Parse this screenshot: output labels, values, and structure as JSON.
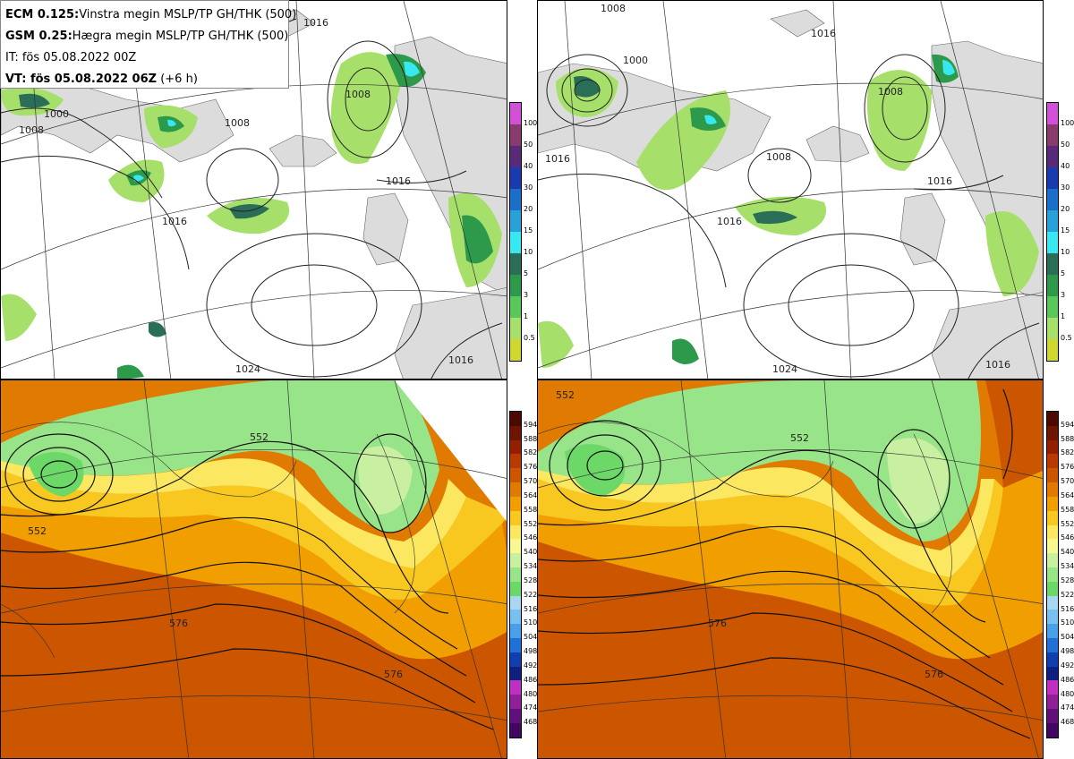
{
  "header": {
    "line1_bold": "ECM 0.125:",
    "line1_text": "Vinstra megin MSLP/TP GH/THK (500)",
    "line2_bold": "GSM 0.25:",
    "line2_text": "Hægra megin MSLP/TP GH/THK (500)",
    "line3_text": "IT: fös 05.08.2022 00Z",
    "line4_bold": "VT: fös 05.08.2022 06Z",
    "line4_text": " (+6 h)"
  },
  "precip_colorbar": {
    "labels": [
      "100",
      "50",
      "40",
      "30",
      "20",
      "15",
      "10",
      "5",
      "3",
      "1",
      "0.5"
    ],
    "colors": [
      "#d24fd8",
      "#8a3b6e",
      "#5a2a7a",
      "#1a3ab0",
      "#1a70c8",
      "#28a0d8",
      "#38e8f0",
      "#2a6e58",
      "#2c9a4a",
      "#58c85a",
      "#a6e06a",
      "#d0d830"
    ]
  },
  "thickness_colorbar": {
    "labels": [
      "594",
      "588",
      "582",
      "576",
      "570",
      "564",
      "558",
      "552",
      "546",
      "540",
      "534",
      "528",
      "522",
      "516",
      "510",
      "504",
      "498",
      "492",
      "486",
      "480",
      "474",
      "468"
    ],
    "colors": [
      "#4a0a00",
      "#6e1500",
      "#941e00",
      "#b83a00",
      "#cc5500",
      "#e07a00",
      "#f09e00",
      "#f8c820",
      "#fce860",
      "#f8f890",
      "#c8f0a0",
      "#98e488",
      "#6cd868",
      "#a8d8f0",
      "#78c0f0",
      "#48a0e8",
      "#2070d8",
      "#1040b0",
      "#102080",
      "#c030c0",
      "#902098",
      "#601078",
      "#400860"
    ]
  },
  "panels": {
    "top_left": {
      "mslp_labels": [
        "1000",
        "1008",
        "1008",
        "1008",
        "1016",
        "1016",
        "1016",
        "1024",
        "1016"
      ]
    },
    "top_right": {
      "mslp_labels": [
        "1008",
        "1000",
        "1016",
        "1016",
        "1008",
        "1016",
        "1016",
        "1024",
        "1016",
        "1008"
      ]
    },
    "bottom_left": {
      "gh_labels": [
        "552",
        "552",
        "576",
        "576"
      ]
    },
    "bottom_right": {
      "gh_labels": [
        "552",
        "552",
        "576",
        "576"
      ]
    }
  }
}
